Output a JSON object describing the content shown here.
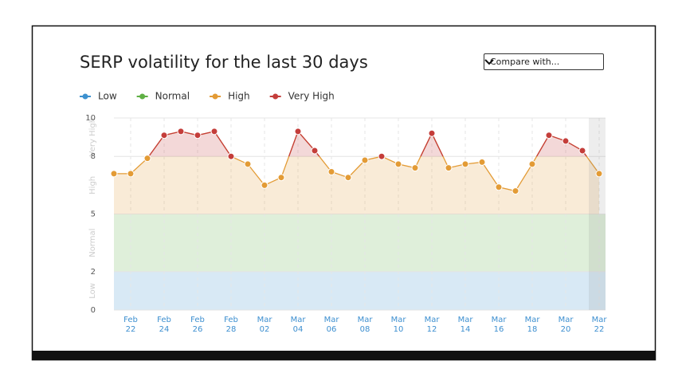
{
  "chart_data": {
    "type": "line",
    "title": "SERP volatility for the last 30 days",
    "compare_label": "Compare with...",
    "bands": [
      {
        "name": "Low",
        "color": "#3d91cf",
        "range": [
          0,
          2
        ]
      },
      {
        "name": "Normal",
        "color": "#5fb044",
        "range": [
          2,
          5
        ]
      },
      {
        "name": "High",
        "color": "#e39b35",
        "range": [
          5,
          8
        ]
      },
      {
        "name": "Very High",
        "color": "#c43d3a",
        "range": [
          8,
          10
        ]
      }
    ],
    "categories": [
      null,
      "Feb 22",
      null,
      "Feb 24",
      null,
      "Feb 26",
      null,
      "Feb 28",
      null,
      "Mar 02",
      null,
      "Mar 04",
      null,
      "Mar 06",
      null,
      "Mar 08",
      null,
      "Mar 10",
      null,
      "Mar 12",
      null,
      "Mar 14",
      null,
      "Mar 16",
      null,
      "Mar 18",
      null,
      "Mar 20",
      null,
      "Mar 22"
    ],
    "values": [
      7.1,
      7.1,
      7.9,
      9.1,
      9.3,
      9.1,
      9.3,
      8.0,
      7.6,
      6.5,
      6.9,
      9.3,
      8.3,
      7.2,
      6.9,
      7.8,
      8.0,
      7.6,
      7.4,
      9.2,
      7.4,
      7.6,
      7.7,
      6.4,
      6.2,
      7.6,
      9.1,
      8.8,
      8.3,
      7.1
    ],
    "ylim": [
      0,
      10
    ],
    "yticks": [
      0,
      2,
      5,
      8,
      10
    ]
  }
}
